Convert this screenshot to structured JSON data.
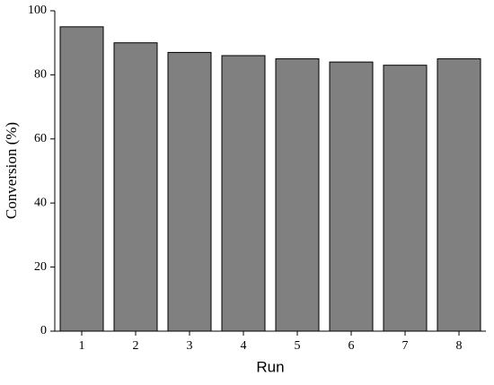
{
  "chart_data": {
    "type": "bar",
    "categories": [
      "1",
      "2",
      "3",
      "4",
      "5",
      "6",
      "7",
      "8"
    ],
    "values": [
      95,
      90,
      87,
      86,
      85,
      84,
      83,
      85
    ],
    "color": "#808080",
    "xlabel": "Run",
    "ylabel": "Conversion (%)",
    "ylim": [
      0,
      100
    ],
    "yticks": [
      0,
      20,
      40,
      60,
      80,
      100
    ],
    "grid": false
  }
}
